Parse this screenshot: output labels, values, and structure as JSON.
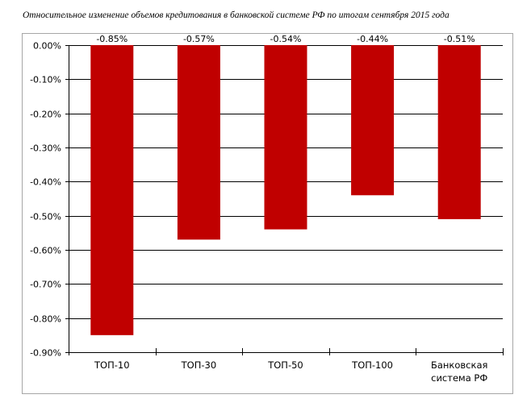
{
  "chart_data": {
    "type": "bar",
    "title": "Относительное изменение объемов кредитования в банковской системе РФ по итогам сентября 2015 года",
    "categories": [
      [
        "ТОП-10"
      ],
      [
        "ТОП-30"
      ],
      [
        "ТОП-50"
      ],
      [
        "ТОП-100"
      ],
      [
        "Банковская",
        "система РФ"
      ]
    ],
    "values": [
      -0.85,
      -0.57,
      -0.54,
      -0.44,
      -0.51
    ],
    "data_labels": [
      "-0.85%",
      "-0.57%",
      "-0.54%",
      "-0.44%",
      "-0.51%"
    ],
    "yticks": [
      0,
      -0.1,
      -0.2,
      -0.3,
      -0.4,
      -0.5,
      -0.6,
      -0.7,
      -0.8,
      -0.9
    ],
    "ytick_labels": [
      "0.00%",
      "-0.10%",
      "-0.20%",
      "-0.30%",
      "-0.40%",
      "-0.50%",
      "-0.60%",
      "-0.70%",
      "-0.80%",
      "-0.90%"
    ],
    "ylim": [
      -0.9,
      0
    ],
    "grid": true,
    "bar_color": "#c00000",
    "xlabel": "",
    "ylabel": ""
  }
}
